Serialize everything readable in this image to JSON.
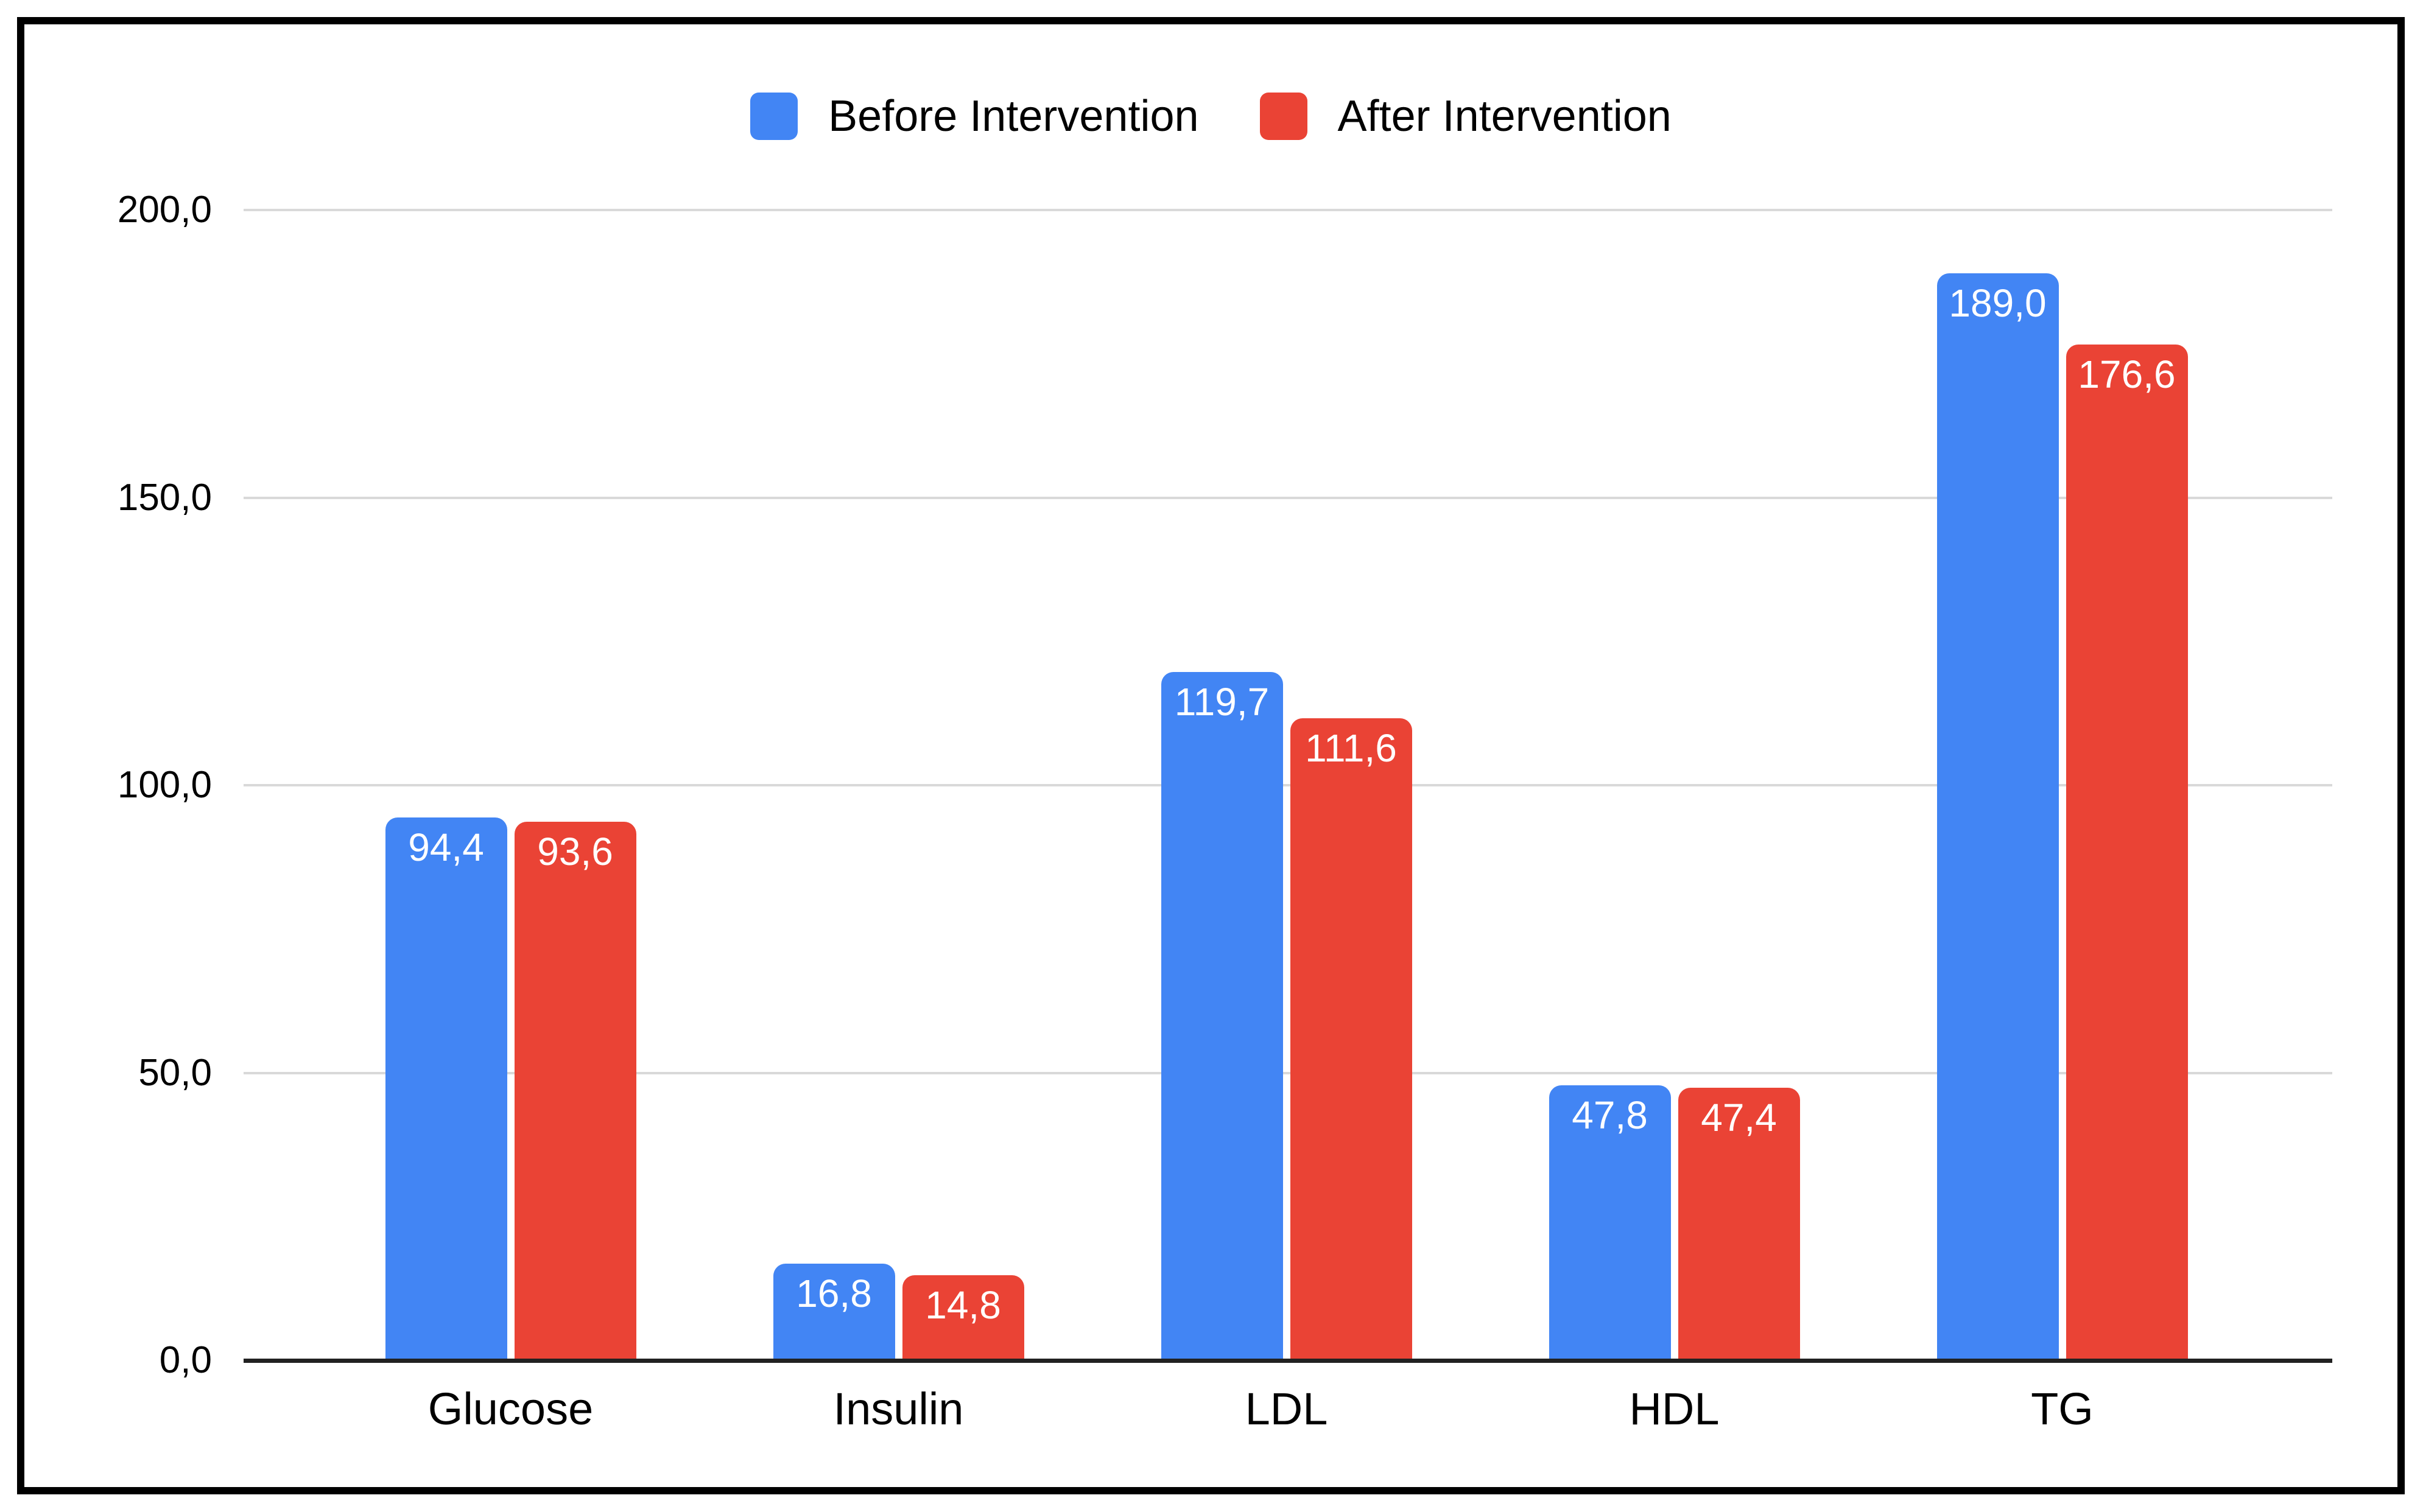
{
  "chart_data": {
    "type": "bar",
    "title": "",
    "xlabel": "",
    "ylabel": "",
    "categories": [
      "Glucose",
      "Insulin",
      "LDL",
      "HDL",
      "TG"
    ],
    "series": [
      {
        "name": "Before Intervention",
        "color": "#4285F4",
        "values": [
          94.4,
          16.8,
          119.7,
          47.8,
          189.0
        ],
        "labels": [
          "94,4",
          "16,8",
          "119,7",
          "47,8",
          "189,0"
        ]
      },
      {
        "name": "After Intervention",
        "color": "#EA4335",
        "values": [
          93.6,
          14.8,
          111.6,
          47.4,
          176.6
        ],
        "labels": [
          "93,6",
          "14,8",
          "111,6",
          "47,4",
          "176,6"
        ]
      }
    ],
    "ylim": [
      0,
      200
    ],
    "yticks": [
      0,
      50,
      100,
      150,
      200
    ],
    "ytick_labels": [
      "0,0",
      "50,0",
      "100,0",
      "150,0",
      "200,0"
    ],
    "grid": true,
    "legend_position": "top"
  },
  "style": {
    "frame_border_color": "#000000",
    "background_color": "#ffffff",
    "gridline_color": "#d9d9d9",
    "axis_line_color": "#212121",
    "bar_label_color": "#ffffff",
    "text_color": "#000000"
  }
}
